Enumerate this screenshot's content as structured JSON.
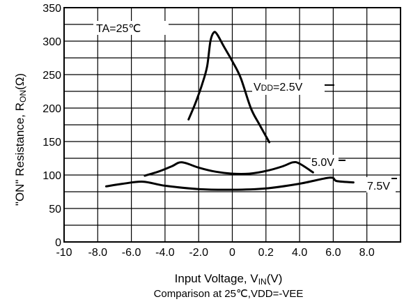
{
  "chart_data": {
    "type": "line",
    "title": "",
    "xlabel": "Input Voltage, VIN(V)",
    "xlabel_main": "Input Voltage, V",
    "xlabel_sub": "IN",
    "xlabel_tail": "(V)",
    "ylabel": "\"ON\" Resistance, RON(Ω)",
    "ylabel_main": "\"ON\" Resistance, R",
    "ylabel_sub": "ON",
    "ylabel_tail": "(Ω)",
    "caption": "Comparison at 25℃,VDD=-VEE",
    "xlim": [
      -10,
      10
    ],
    "ylim": [
      0,
      350
    ],
    "x_tick_labels": [
      "-10",
      "-8.0",
      "-6.0",
      "-4.0",
      "-2.0",
      "0",
      "0.2",
      "4.0",
      "6.0",
      "8.0"
    ],
    "y_tick_labels": [
      "0",
      "50",
      "100",
      "150",
      "200",
      "250",
      "300",
      "350"
    ],
    "grid": true,
    "annotations": {
      "ta": "TA=25℃",
      "vdd_prefix": "V",
      "vdd_sub": "DD",
      "vdd_value": "=2.5V",
      "v5": "5.0V",
      "v75": "7.5V"
    },
    "series": [
      {
        "label": "VDD=2.5V",
        "x": [
          -2.6,
          -2.2,
          -1.8,
          -1.5,
          -1.3,
          -1.1,
          -0.9,
          -0.5,
          0.0,
          0.5,
          1.1,
          1.6,
          2.2
        ],
        "y": [
          183,
          207,
          235,
          262,
          300,
          313,
          310,
          292,
          270,
          245,
          200,
          176,
          149
        ]
      },
      {
        "label": "5.0V",
        "x": [
          -5.2,
          -4.4,
          -3.6,
          -3.0,
          -2.0,
          -1.0,
          0.0,
          1.0,
          2.0,
          3.0,
          3.6,
          4.0,
          4.8
        ],
        "y": [
          99,
          105,
          113,
          119,
          111,
          105,
          102,
          102,
          106,
          113,
          119,
          117,
          104
        ]
      },
      {
        "label": "7.5V",
        "x": [
          -7.5,
          -6.5,
          -5.3,
          -4.0,
          -2.0,
          0.0,
          2.0,
          4.0,
          5.8,
          6.2,
          7.2
        ],
        "y": [
          83,
          87,
          90,
          84,
          79,
          78,
          80,
          87,
          96,
          91,
          89
        ]
      }
    ]
  }
}
